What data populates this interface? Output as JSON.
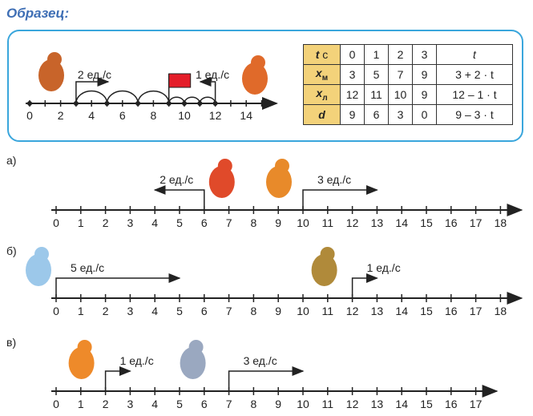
{
  "title": "Образец:",
  "sample": {
    "axis_labels": [
      "0",
      "2",
      "4",
      "6",
      "8",
      "10",
      "12",
      "14"
    ],
    "bear": {
      "start": 3,
      "speed_label": "2 ед./с"
    },
    "fox": {
      "start": 12,
      "speed_label": "1 ед./с"
    },
    "meeting_point": 9,
    "table": {
      "rows": [
        {
          "head": "t",
          "unit": "с",
          "values": [
            "0",
            "1",
            "2",
            "3"
          ],
          "formula": "t"
        },
        {
          "head": "x",
          "sub": "м",
          "values": [
            "3",
            "5",
            "7",
            "9"
          ],
          "formula": "3 + 2 · t"
        },
        {
          "head": "x",
          "sub": "л",
          "values": [
            "12",
            "11",
            "10",
            "9"
          ],
          "formula": "12 – 1 · t"
        },
        {
          "head": "d",
          "values": [
            "9",
            "6",
            "3",
            "0"
          ],
          "formula": "9 – 3 · t"
        }
      ]
    }
  },
  "tasks": [
    {
      "label": "а)",
      "max": 18,
      "movers": [
        {
          "name": "cat",
          "start": 6,
          "dir": -1,
          "len": 2,
          "speed_label": "2 ед./с"
        },
        {
          "name": "dog",
          "start": 10,
          "dir": 1,
          "len": 3,
          "speed_label": "3 ед./с"
        }
      ]
    },
    {
      "label": "б)",
      "max": 18,
      "movers": [
        {
          "name": "rabbit",
          "start": 0,
          "dir": 1,
          "len": 5,
          "speed_label": "5 ед./с"
        },
        {
          "name": "turtle",
          "start": 12,
          "dir": 1,
          "len": 1,
          "speed_label": "1 ед./с"
        }
      ]
    },
    {
      "label": "в)",
      "max": 17,
      "movers": [
        {
          "name": "tiger",
          "start": 2,
          "dir": 1,
          "len": 1,
          "speed_label": "1 ед./с"
        },
        {
          "name": "donkey",
          "start": 7,
          "dir": 1,
          "len": 3,
          "speed_label": "3 ед./с"
        }
      ]
    }
  ]
}
